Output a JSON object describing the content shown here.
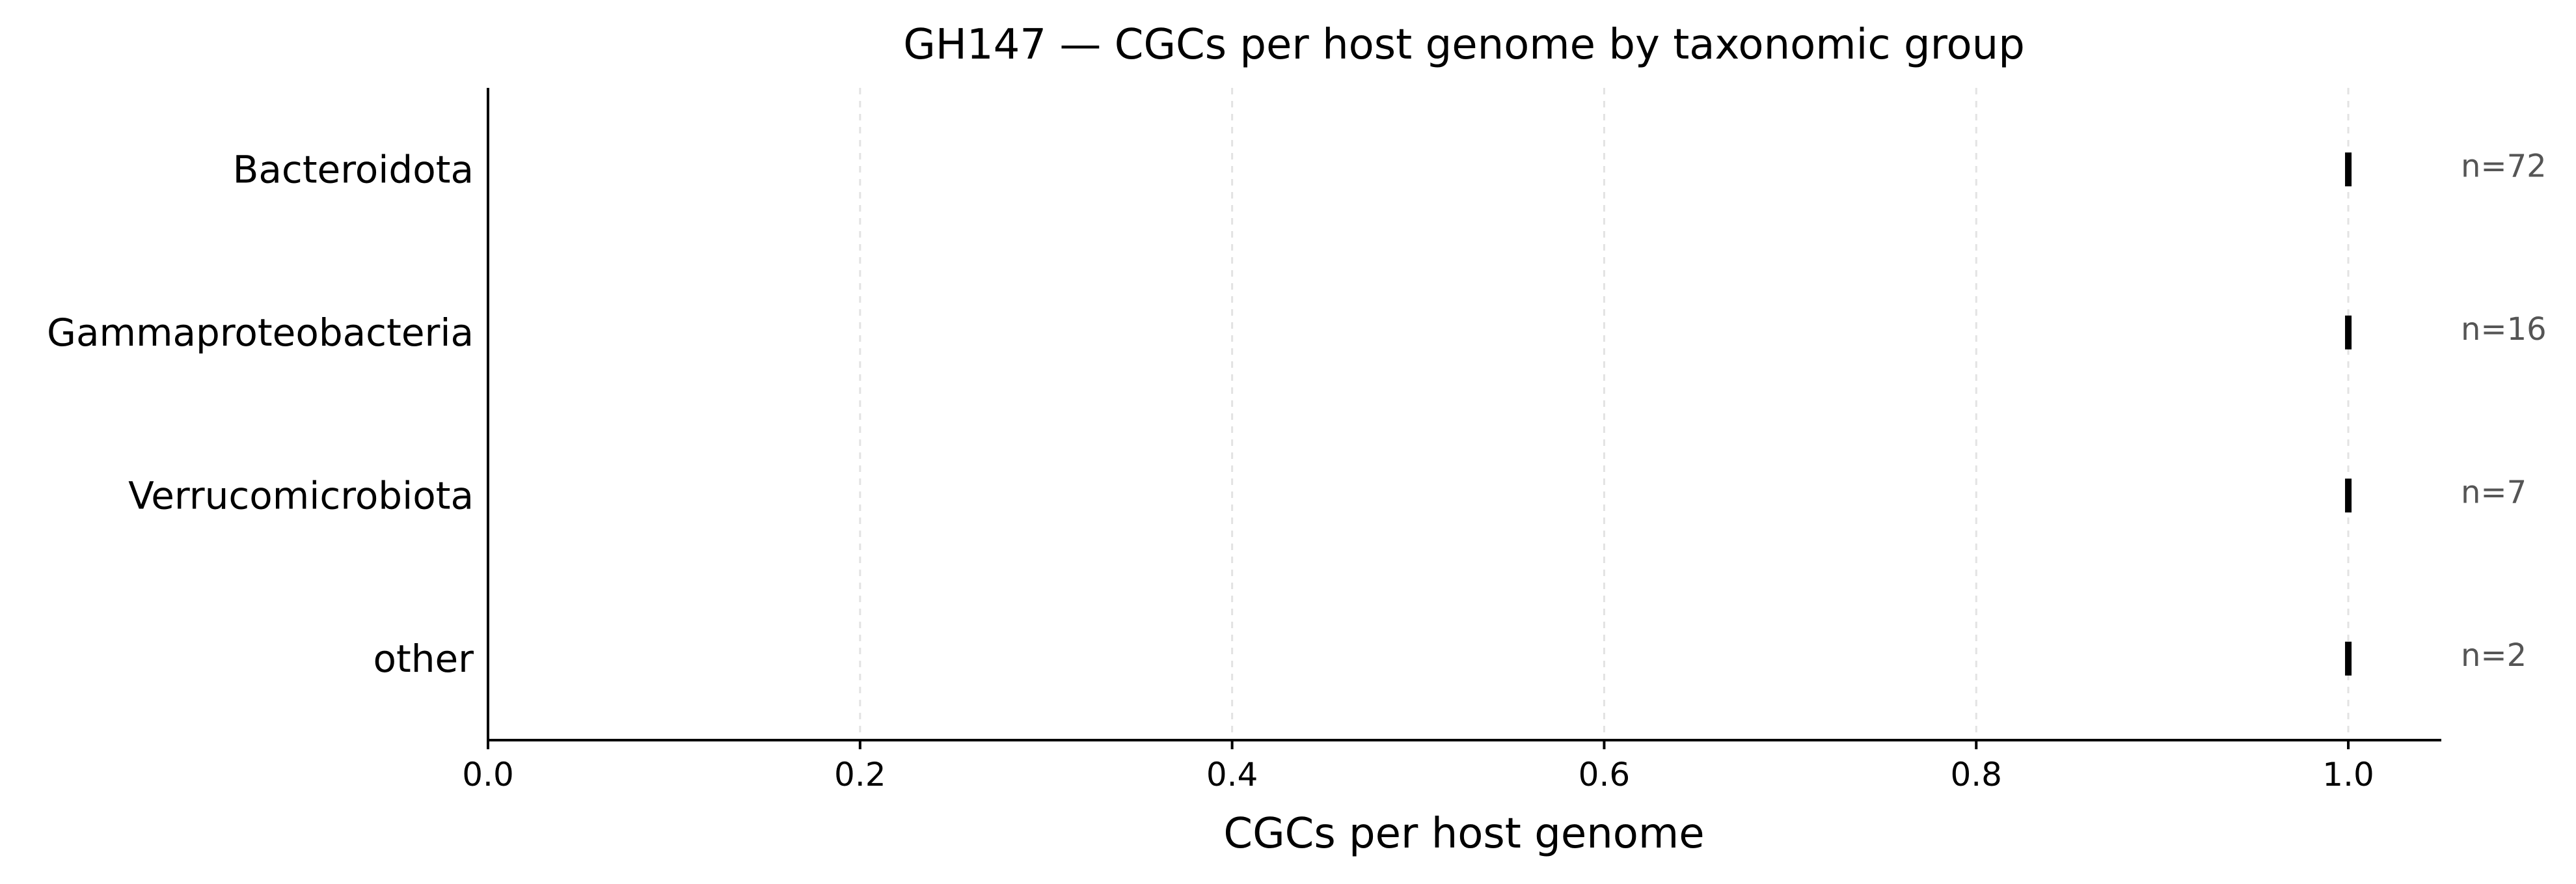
{
  "chart_data": {
    "type": "scatter",
    "title": "GH147 — CGCs per host genome by taxonomic group",
    "xlabel": "CGCs per host genome",
    "ylabel": "",
    "xlim": [
      0.0,
      1.05
    ],
    "xticks": [
      0.0,
      0.2,
      0.4,
      0.6,
      0.8,
      1.0
    ],
    "xtick_labels": [
      "0.0",
      "0.2",
      "0.4",
      "0.6",
      "0.8",
      "1.0"
    ],
    "grid": "vertical, dashed",
    "categories": [
      "Bacteroidota",
      "Gammaproteobacteria",
      "Verrucomicrobiota",
      "other"
    ],
    "values": [
      1.0,
      1.0,
      1.0,
      1.0
    ],
    "n_labels": [
      "n=72",
      "n=16",
      "n=7",
      "n=2"
    ],
    "colors": {
      "mark": "#000000",
      "n_label": "#555555",
      "grid": "#e3e3e3"
    }
  }
}
